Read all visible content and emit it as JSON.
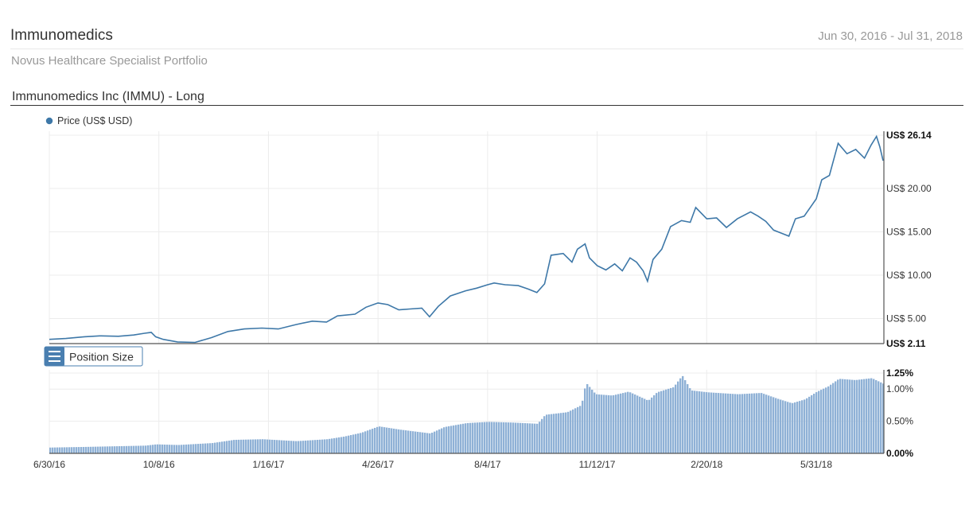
{
  "header": {
    "title": "Immunomedics",
    "date_range": "Jun 30, 2016 - Jul 31, 2018",
    "subtitle": "Novus Healthcare Specialist Portfolio"
  },
  "section_title": "Immunomedics Inc (IMMU) - Long",
  "position_size_label": "Position Size",
  "colors": {
    "price_line": "#3e78a8",
    "bars": "#8fb1d6",
    "grid": "#ececec",
    "accent": "#4a7fb0"
  },
  "chart_data": [
    {
      "type": "line",
      "legend": [
        "Price (US$ USD)"
      ],
      "legend_placement": "top-left",
      "grid": true,
      "xlim": [
        "2016-06-30",
        "2018-07-31"
      ],
      "ylim": [
        2.11,
        26.14
      ],
      "ytick_labels": [
        "US$ 26.14",
        "US$ 20.00",
        "US$ 15.00",
        "US$ 10.00",
        "US$ 5.00",
        "US$ 2.11"
      ],
      "ytick_values": [
        26.14,
        20,
        15,
        10,
        5,
        2.11
      ],
      "series": [
        {
          "name": "Price (US$ USD)",
          "points": [
            [
              "2016-06-30",
              2.6
            ],
            [
              "2016-07-15",
              2.7
            ],
            [
              "2016-08-01",
              2.9
            ],
            [
              "2016-08-15",
              3.0
            ],
            [
              "2016-09-01",
              2.95
            ],
            [
              "2016-09-15",
              3.1
            ],
            [
              "2016-09-25",
              3.3
            ],
            [
              "2016-10-01",
              3.4
            ],
            [
              "2016-10-05",
              2.9
            ],
            [
              "2016-10-12",
              2.6
            ],
            [
              "2016-10-25",
              2.3
            ],
            [
              "2016-11-10",
              2.25
            ],
            [
              "2016-11-25",
              2.8
            ],
            [
              "2016-12-10",
              3.5
            ],
            [
              "2016-12-25",
              3.8
            ],
            [
              "2017-01-10",
              3.9
            ],
            [
              "2017-01-25",
              3.8
            ],
            [
              "2017-02-10",
              4.3
            ],
            [
              "2017-02-25",
              4.7
            ],
            [
              "2017-03-10",
              4.6
            ],
            [
              "2017-03-20",
              5.3
            ],
            [
              "2017-04-05",
              5.5
            ],
            [
              "2017-04-15",
              6.3
            ],
            [
              "2017-04-26",
              6.8
            ],
            [
              "2017-05-05",
              6.6
            ],
            [
              "2017-05-15",
              6.0
            ],
            [
              "2017-05-25",
              6.1
            ],
            [
              "2017-06-05",
              6.2
            ],
            [
              "2017-06-12",
              5.2
            ],
            [
              "2017-06-20",
              6.4
            ],
            [
              "2017-07-01",
              7.6
            ],
            [
              "2017-07-15",
              8.2
            ],
            [
              "2017-07-25",
              8.5
            ],
            [
              "2017-08-04",
              8.9
            ],
            [
              "2017-08-10",
              9.1
            ],
            [
              "2017-08-20",
              8.9
            ],
            [
              "2017-09-01",
              8.8
            ],
            [
              "2017-09-10",
              8.4
            ],
            [
              "2017-09-18",
              8.0
            ],
            [
              "2017-09-25",
              9.0
            ],
            [
              "2017-10-01",
              12.3
            ],
            [
              "2017-10-12",
              12.5
            ],
            [
              "2017-10-20",
              11.5
            ],
            [
              "2017-10-25",
              13.0
            ],
            [
              "2017-11-01",
              13.6
            ],
            [
              "2017-11-05",
              12.0
            ],
            [
              "2017-11-12",
              11.1
            ],
            [
              "2017-11-20",
              10.6
            ],
            [
              "2017-11-28",
              11.3
            ],
            [
              "2017-12-05",
              10.5
            ],
            [
              "2017-12-12",
              12.0
            ],
            [
              "2017-12-18",
              11.5
            ],
            [
              "2017-12-24",
              10.5
            ],
            [
              "2017-12-28",
              9.3
            ],
            [
              "2018-01-02",
              11.8
            ],
            [
              "2018-01-10",
              13.0
            ],
            [
              "2018-01-18",
              15.6
            ],
            [
              "2018-01-28",
              16.3
            ],
            [
              "2018-02-05",
              16.1
            ],
            [
              "2018-02-10",
              17.8
            ],
            [
              "2018-02-20",
              16.5
            ],
            [
              "2018-03-01",
              16.6
            ],
            [
              "2018-03-10",
              15.5
            ],
            [
              "2018-03-20",
              16.5
            ],
            [
              "2018-04-01",
              17.3
            ],
            [
              "2018-04-08",
              16.8
            ],
            [
              "2018-04-15",
              16.2
            ],
            [
              "2018-04-22",
              15.2
            ],
            [
              "2018-04-30",
              14.8
            ],
            [
              "2018-05-06",
              14.5
            ],
            [
              "2018-05-12",
              16.5
            ],
            [
              "2018-05-20",
              16.8
            ],
            [
              "2018-05-31",
              18.8
            ],
            [
              "2018-06-05",
              21.0
            ],
            [
              "2018-06-12",
              21.5
            ],
            [
              "2018-06-20",
              25.2
            ],
            [
              "2018-06-28",
              24.0
            ],
            [
              "2018-07-06",
              24.5
            ],
            [
              "2018-07-14",
              23.5
            ],
            [
              "2018-07-20",
              25.0
            ],
            [
              "2018-07-25",
              26.0
            ],
            [
              "2018-07-28",
              24.8
            ],
            [
              "2018-07-31",
              23.2
            ]
          ]
        }
      ]
    },
    {
      "type": "bar",
      "title": "Position Size",
      "grid": true,
      "ylim": [
        0,
        1.25
      ],
      "ytick_labels": [
        "1.25%",
        "1.00%",
        "0.50%",
        "0.00%"
      ],
      "ytick_values": [
        1.25,
        1.0,
        0.5,
        0
      ],
      "xtick_labels": [
        "6/30/16",
        "10/8/16",
        "1/16/17",
        "4/26/17",
        "8/4/17",
        "11/12/17",
        "2/20/18",
        "5/31/18"
      ],
      "xtick_dates": [
        "2016-06-30",
        "2016-10-08",
        "2017-01-16",
        "2017-04-26",
        "2017-08-04",
        "2017-11-12",
        "2018-02-20",
        "2018-05-31"
      ],
      "series": [
        {
          "points": [
            [
              "2016-06-30",
              0.09
            ],
            [
              "2016-08-01",
              0.1
            ],
            [
              "2016-09-25",
              0.12
            ],
            [
              "2016-10-05",
              0.14
            ],
            [
              "2016-10-25",
              0.13
            ],
            [
              "2016-11-25",
              0.16
            ],
            [
              "2016-12-15",
              0.21
            ],
            [
              "2017-01-10",
              0.22
            ],
            [
              "2017-02-10",
              0.19
            ],
            [
              "2017-03-10",
              0.22
            ],
            [
              "2017-03-25",
              0.26
            ],
            [
              "2017-04-10",
              0.32
            ],
            [
              "2017-04-26",
              0.42
            ],
            [
              "2017-05-15",
              0.37
            ],
            [
              "2017-06-12",
              0.31
            ],
            [
              "2017-06-25",
              0.41
            ],
            [
              "2017-07-15",
              0.47
            ],
            [
              "2017-08-04",
              0.49
            ],
            [
              "2017-08-25",
              0.48
            ],
            [
              "2017-09-18",
              0.46
            ],
            [
              "2017-09-25",
              0.6
            ],
            [
              "2017-10-15",
              0.64
            ],
            [
              "2017-10-28",
              0.75
            ],
            [
              "2017-11-01",
              1.1
            ],
            [
              "2017-11-10",
              0.92
            ],
            [
              "2017-11-25",
              0.9
            ],
            [
              "2017-12-10",
              0.96
            ],
            [
              "2017-12-28",
              0.82
            ],
            [
              "2018-01-05",
              0.95
            ],
            [
              "2018-01-20",
              1.03
            ],
            [
              "2018-01-28",
              1.21
            ],
            [
              "2018-02-05",
              0.98
            ],
            [
              "2018-02-20",
              0.95
            ],
            [
              "2018-03-20",
              0.92
            ],
            [
              "2018-04-10",
              0.94
            ],
            [
              "2018-04-25",
              0.85
            ],
            [
              "2018-05-08",
              0.78
            ],
            [
              "2018-05-20",
              0.84
            ],
            [
              "2018-05-31",
              0.96
            ],
            [
              "2018-06-10",
              1.04
            ],
            [
              "2018-06-20",
              1.16
            ],
            [
              "2018-07-05",
              1.14
            ],
            [
              "2018-07-20",
              1.17
            ],
            [
              "2018-07-31",
              1.08
            ]
          ]
        }
      ]
    }
  ]
}
